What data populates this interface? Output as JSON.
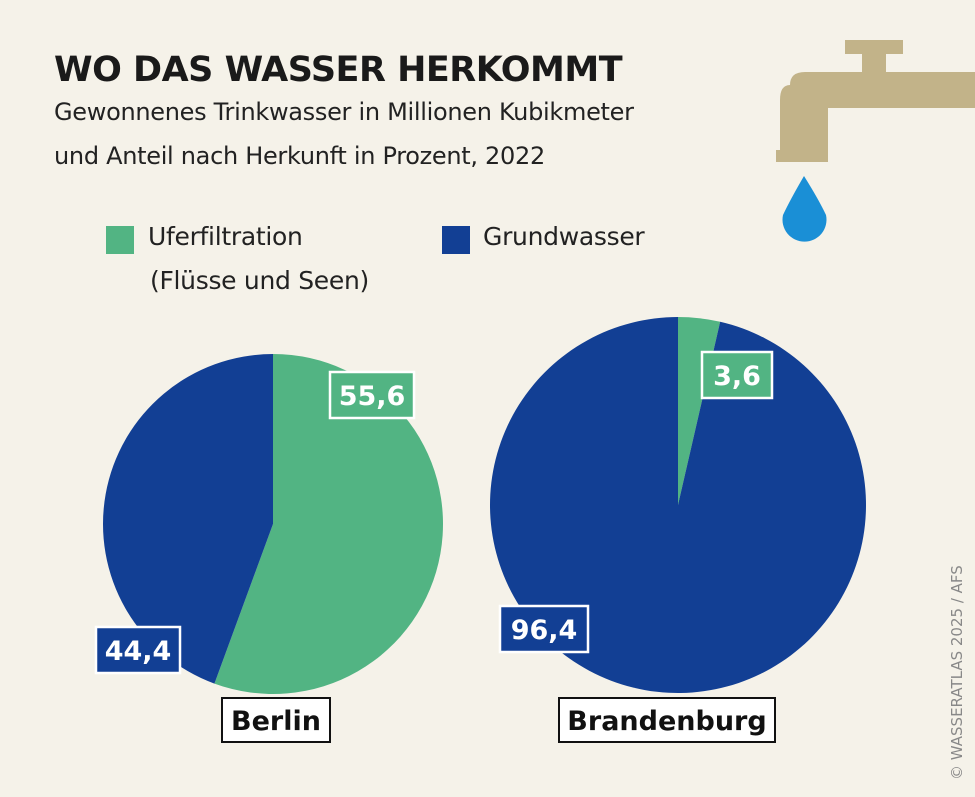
{
  "header": {
    "title": "WO DAS WASSER HERKOMMT",
    "subtitle_line1": "Gewonnenes Trinkwasser in Millionen Kubikmeter",
    "subtitle_line2": "und Anteil nach Herkunft in Prozent, 2022"
  },
  "legend": [
    {
      "label": "Uferfiltration",
      "label2": "(Flüsse und Seen)",
      "color": "#52b483"
    },
    {
      "label": "Grundwasser",
      "color": "#123f94"
    }
  ],
  "credit": "© WASSERATLAS 2025 / AFS",
  "icons": {
    "faucet": "faucet-icon",
    "drop": "water-drop-icon"
  },
  "chart_data": [
    {
      "type": "pie",
      "title": "Berlin",
      "slices": [
        {
          "name": "Uferfiltration",
          "value": 55.6,
          "label": "55,6",
          "color": "#52b483"
        },
        {
          "name": "Grundwasser",
          "value": 44.4,
          "label": "44,4",
          "color": "#123f94"
        }
      ]
    },
    {
      "type": "pie",
      "title": "Brandenburg",
      "slices": [
        {
          "name": "Uferfiltration",
          "value": 3.6,
          "label": "3,6",
          "color": "#52b483"
        },
        {
          "name": "Grundwasser",
          "value": 96.4,
          "label": "96,4",
          "color": "#123f94"
        }
      ]
    }
  ]
}
